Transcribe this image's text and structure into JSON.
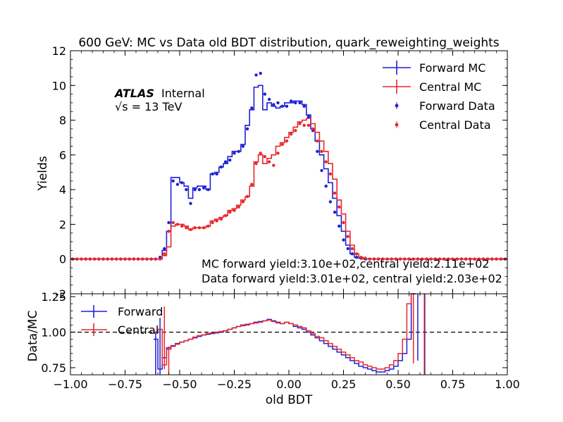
{
  "chart_data": [
    {
      "panel": "main",
      "type": "line",
      "title": "600 GeV: MC vs Data old BDT distribution, quark_reweighting_weights",
      "xlabel": "",
      "ylabel": "Yields",
      "xlim": [
        -1.0,
        1.0
      ],
      "ylim": [
        -2,
        12
      ],
      "yticks": [
        "-2",
        "0",
        "2",
        "4",
        "6",
        "8",
        "10",
        "12"
      ],
      "experiment_label": "ATLAS",
      "status_label": "Internal",
      "energy_label": "√s = 13 TeV",
      "annotations": [
        "MC forward yield:3.10e+02,central yield:2.11e+02",
        "Data forward yield:3.01e+02, central yield:2.03e+02"
      ],
      "legend_position": "top-right",
      "bin_edges": [
        -0.6,
        -0.58,
        -0.56,
        -0.54,
        -0.52,
        -0.5,
        -0.48,
        -0.46,
        -0.44,
        -0.42,
        -0.4,
        -0.38,
        -0.36,
        -0.34,
        -0.32,
        -0.3,
        -0.28,
        -0.26,
        -0.24,
        -0.22,
        -0.2,
        -0.18,
        -0.16,
        -0.14,
        -0.12,
        -0.1,
        -0.08,
        -0.06,
        -0.04,
        -0.02,
        0.0,
        0.02,
        0.04,
        0.06,
        0.08,
        0.1,
        0.12,
        0.14,
        0.16,
        0.18,
        0.2,
        0.22,
        0.24,
        0.26,
        0.28,
        0.3,
        0.32,
        0.34,
        0.36,
        0.38,
        0.4,
        0.42,
        0.44,
        0.46,
        0.48,
        0.5,
        0.52,
        0.54,
        0.56,
        0.58,
        0.6,
        0.62
      ],
      "series": [
        {
          "name": "Forward MC",
          "style": "step",
          "color": "#1f1fd6",
          "values": [
            0.0,
            0.5,
            1.6,
            4.7,
            4.7,
            4.4,
            4.2,
            3.5,
            4.1,
            4.2,
            4.2,
            4.0,
            4.9,
            5.0,
            5.3,
            5.5,
            5.9,
            6.2,
            6.2,
            6.6,
            7.7,
            8.6,
            9.9,
            10.0,
            8.6,
            9.0,
            8.8,
            8.7,
            8.8,
            9.0,
            9.0,
            9.1,
            9.1,
            8.9,
            8.3,
            7.5,
            6.8,
            6.0,
            5.2,
            4.4,
            3.5,
            2.5,
            1.6,
            0.8,
            0.3,
            0.1,
            0.05,
            0.0,
            0.0,
            0.0,
            0.0,
            0.0,
            0.0,
            0.0,
            0.0,
            0.0,
            0.0,
            0.0,
            0.0,
            0.0,
            0.0
          ]
        },
        {
          "name": "Central MC",
          "style": "step",
          "color": "#e8262b",
          "values": [
            0.0,
            0.2,
            0.7,
            1.9,
            2.0,
            2.0,
            1.9,
            1.7,
            1.8,
            1.8,
            1.8,
            1.9,
            2.2,
            2.3,
            2.4,
            2.5,
            2.8,
            2.9,
            3.1,
            3.4,
            3.6,
            4.2,
            5.6,
            6.0,
            5.5,
            5.8,
            6.0,
            6.5,
            6.7,
            7.0,
            7.3,
            7.6,
            7.9,
            8.0,
            8.1,
            7.8,
            7.3,
            6.8,
            6.2,
            5.5,
            4.6,
            3.4,
            2.6,
            1.6,
            0.8,
            0.3,
            0.1,
            0.0,
            0.0,
            0.0,
            0.0,
            0.0,
            0.0,
            0.0,
            0.0,
            0.0,
            0.0,
            0.0,
            0.0,
            0.0,
            0.0
          ]
        },
        {
          "name": "Forward Data",
          "style": "points",
          "color": "#1f1fd6",
          "x": [
            -0.59,
            -0.57,
            -0.55,
            -0.53,
            -0.51,
            -0.49,
            -0.47,
            -0.45,
            -0.43,
            -0.41,
            -0.39,
            -0.37,
            -0.35,
            -0.33,
            -0.31,
            -0.29,
            -0.27,
            -0.25,
            -0.23,
            -0.21,
            -0.19,
            -0.17,
            -0.15,
            -0.13,
            -0.11,
            -0.09,
            -0.07,
            -0.05,
            -0.03,
            -0.01,
            0.01,
            0.03,
            0.05,
            0.07,
            0.09,
            0.11,
            0.13,
            0.15,
            0.17,
            0.19,
            0.21,
            0.23,
            0.25,
            0.27,
            0.29,
            0.31,
            0.33,
            0.35,
            0.37,
            0.39,
            0.41,
            0.43,
            0.45,
            0.47,
            0.49,
            0.51,
            0.53,
            0.55,
            0.57,
            0.59
          ],
          "values": [
            0.1,
            0.6,
            2.1,
            4.5,
            4.3,
            4.4,
            4.0,
            3.2,
            4.0,
            4.0,
            4.1,
            4.0,
            4.9,
            4.9,
            5.3,
            5.6,
            5.7,
            6.1,
            6.2,
            6.5,
            7.5,
            8.7,
            10.6,
            10.7,
            9.5,
            9.2,
            8.9,
            9.0,
            8.8,
            8.8,
            9.1,
            9.0,
            9.0,
            8.8,
            8.2,
            7.4,
            6.2,
            5.1,
            4.2,
            3.3,
            2.7,
            1.9,
            1.1,
            0.6,
            0.3,
            0.1,
            0.05,
            0.0,
            0.0,
            0.0,
            0.0,
            0.0,
            0.0,
            0.0,
            0.0,
            0.0,
            0.0,
            0.0,
            0.0,
            0.0
          ]
        },
        {
          "name": "Central Data",
          "style": "points",
          "color": "#e8262b",
          "x": [
            -0.59,
            -0.57,
            -0.55,
            -0.53,
            -0.51,
            -0.49,
            -0.47,
            -0.45,
            -0.43,
            -0.41,
            -0.39,
            -0.37,
            -0.35,
            -0.33,
            -0.31,
            -0.29,
            -0.27,
            -0.25,
            -0.23,
            -0.21,
            -0.19,
            -0.17,
            -0.15,
            -0.13,
            -0.11,
            -0.09,
            -0.07,
            -0.05,
            -0.03,
            -0.01,
            0.01,
            0.03,
            0.05,
            0.07,
            0.09,
            0.11,
            0.13,
            0.15,
            0.17,
            0.19,
            0.21,
            0.23,
            0.25,
            0.27,
            0.29,
            0.31,
            0.33,
            0.35,
            0.37,
            0.39,
            0.41,
            0.43,
            0.45,
            0.47,
            0.49,
            0.51,
            0.53,
            0.55,
            0.57,
            0.59
          ],
          "values": [
            0.0,
            0.3,
            1.6,
            2.1,
            2.0,
            1.9,
            1.8,
            1.7,
            1.8,
            1.8,
            1.8,
            1.9,
            2.1,
            2.2,
            2.3,
            2.5,
            2.7,
            2.8,
            3.0,
            3.3,
            3.6,
            4.3,
            5.5,
            6.1,
            5.9,
            5.6,
            5.4,
            6.1,
            6.6,
            6.8,
            7.2,
            7.4,
            7.8,
            7.7,
            7.7,
            7.5,
            6.8,
            6.2,
            5.6,
            4.9,
            3.8,
            3.0,
            2.1,
            1.3,
            0.6,
            0.3,
            0.1,
            0.05,
            0.0,
            0.0,
            0.0,
            0.0,
            0.0,
            0.0,
            0.0,
            0.0,
            0.0,
            0.0,
            0.0,
            0.0
          ]
        }
      ]
    },
    {
      "panel": "ratio",
      "type": "line",
      "xlabel": "old BDT",
      "ylabel": "Data/MC",
      "xlim": [
        -1.0,
        1.0
      ],
      "ylim": [
        0.7,
        1.27
      ],
      "xticks": [
        "−1.00",
        "−0.75",
        "−0.50",
        "−0.25",
        "0.00",
        "0.25",
        "0.50",
        "0.75",
        "1.00"
      ],
      "yticks": [
        "0.75",
        "1.00",
        "1.25"
      ],
      "reference_line": 1.0,
      "legend_position": "top-left",
      "bin_edges": [
        -0.62,
        -0.6,
        -0.58,
        -0.56,
        -0.54,
        -0.52,
        -0.5,
        -0.48,
        -0.46,
        -0.44,
        -0.42,
        -0.4,
        -0.38,
        -0.36,
        -0.34,
        -0.32,
        -0.3,
        -0.28,
        -0.26,
        -0.24,
        -0.22,
        -0.2,
        -0.18,
        -0.16,
        -0.14,
        -0.12,
        -0.1,
        -0.08,
        -0.06,
        -0.04,
        -0.02,
        0.0,
        0.02,
        0.04,
        0.06,
        0.08,
        0.1,
        0.12,
        0.14,
        0.16,
        0.18,
        0.2,
        0.22,
        0.24,
        0.26,
        0.28,
        0.3,
        0.32,
        0.34,
        0.36,
        0.38,
        0.4,
        0.42,
        0.44,
        0.46,
        0.48,
        0.5,
        0.52,
        0.54,
        0.56,
        0.58,
        0.6
      ],
      "series": [
        {
          "name": "Forward",
          "style": "step",
          "color": "#1f1fd6",
          "values": [
            0.95,
            0.74,
            0.82,
            0.89,
            0.905,
            0.92,
            0.93,
            0.94,
            0.95,
            0.96,
            0.97,
            0.98,
            0.985,
            0.99,
            0.995,
            1.0,
            1.01,
            1.02,
            1.03,
            1.04,
            1.05,
            1.055,
            1.06,
            1.07,
            1.075,
            1.08,
            1.09,
            1.08,
            1.07,
            1.06,
            1.07,
            1.06,
            1.04,
            1.03,
            1.02,
            1.0,
            0.98,
            0.96,
            0.94,
            0.92,
            0.9,
            0.88,
            0.86,
            0.84,
            0.82,
            0.8,
            0.78,
            0.76,
            0.75,
            0.74,
            0.73,
            0.72,
            0.72,
            0.73,
            0.74,
            0.76,
            0.8,
            0.85,
            0.95,
            1.27
          ]
        },
        {
          "name": "Central",
          "style": "step",
          "color": "#e8262b",
          "values": [
            1.0,
            1.02,
            0.77,
            0.88,
            0.9,
            0.915,
            0.93,
            0.94,
            0.95,
            0.965,
            0.975,
            0.98,
            0.99,
            0.995,
            1.0,
            1.005,
            1.01,
            1.02,
            1.03,
            1.04,
            1.045,
            1.05,
            1.06,
            1.065,
            1.07,
            1.08,
            1.085,
            1.075,
            1.065,
            1.06,
            1.07,
            1.06,
            1.05,
            1.04,
            1.03,
            1.01,
            0.99,
            0.97,
            0.96,
            0.94,
            0.92,
            0.9,
            0.88,
            0.86,
            0.84,
            0.82,
            0.8,
            0.79,
            0.77,
            0.76,
            0.75,
            0.74,
            0.74,
            0.75,
            0.77,
            0.8,
            0.85,
            0.95,
            1.2,
            1.27
          ]
        }
      ]
    }
  ],
  "colors": {
    "forward": "#1f1fd6",
    "central": "#e8262b"
  }
}
